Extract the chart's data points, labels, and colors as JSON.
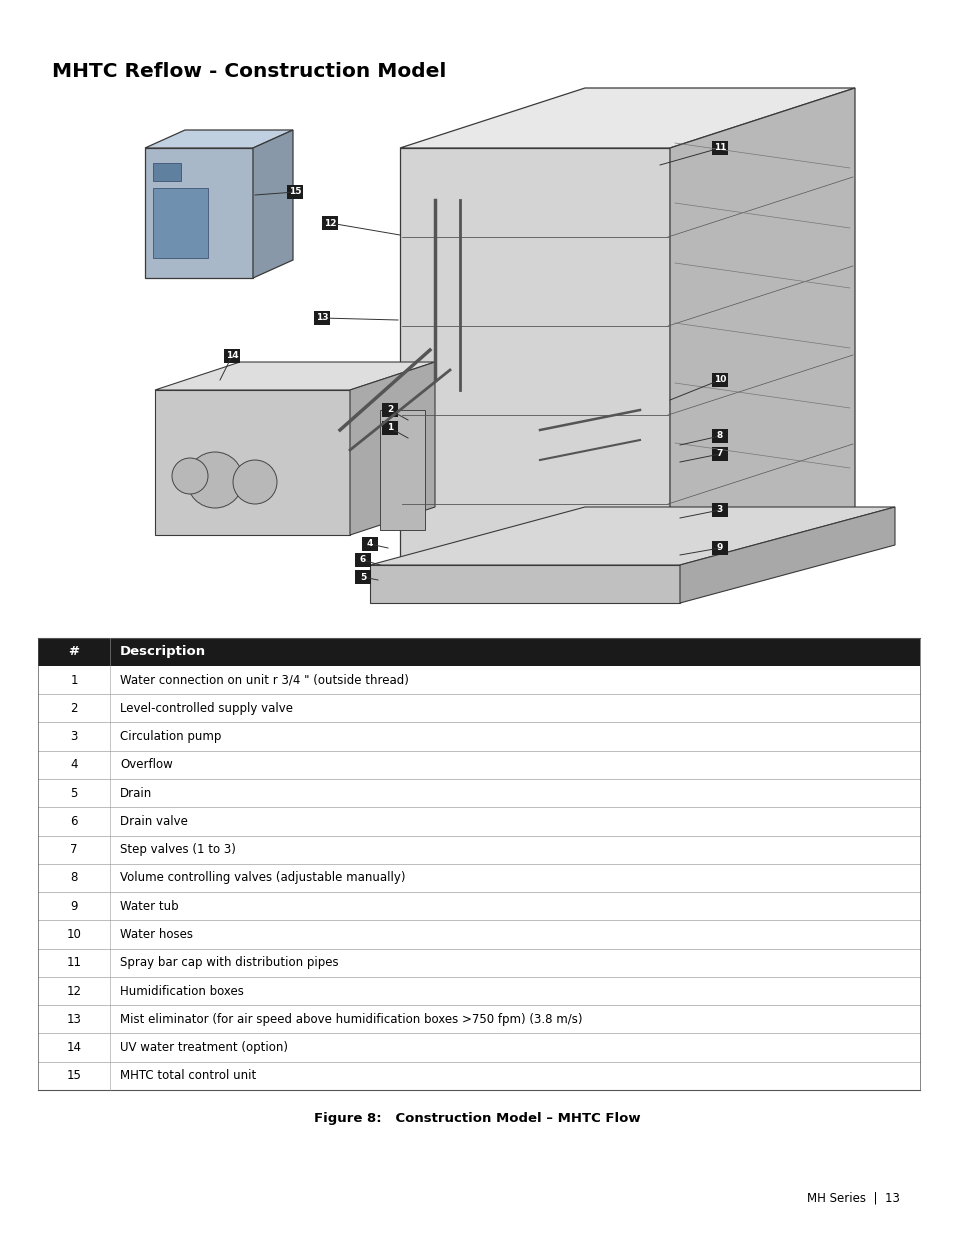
{
  "title": "MHTC Reflow - Construction Model",
  "title_fontsize": 14.5,
  "table_header": [
    "#",
    "Description"
  ],
  "table_rows": [
    [
      "1",
      "Water connection on unit r 3/4 \" (outside thread)"
    ],
    [
      "2",
      "Level-controlled supply valve"
    ],
    [
      "3",
      "Circulation pump"
    ],
    [
      "4",
      "Overflow"
    ],
    [
      "5",
      "Drain"
    ],
    [
      "6",
      "Drain valve"
    ],
    [
      "7",
      "Step valves (1 to 3)"
    ],
    [
      "8",
      "Volume controlling valves (adjustable manually)"
    ],
    [
      "9",
      "Water tub"
    ],
    [
      "10",
      "Water hoses"
    ],
    [
      "11",
      "Spray bar cap with distribution pipes"
    ],
    [
      "12",
      "Humidification boxes"
    ],
    [
      "13",
      "Mist eliminator (for air speed above humidification boxes >750 fpm) (3.8 m/s)"
    ],
    [
      "14",
      "UV water treatment (option)"
    ],
    [
      "15",
      "MHTC total control unit"
    ]
  ],
  "figure_caption": "Figure 8:   Construction Model – MHTC Flow",
  "page_text": "MH Series  |  13",
  "header_bg_color": "#1a1a1a",
  "header_text_color": "#ffffff",
  "row_line_color": "#bbbbbb",
  "table_text_color": "#000000",
  "background_color": "#ffffff"
}
